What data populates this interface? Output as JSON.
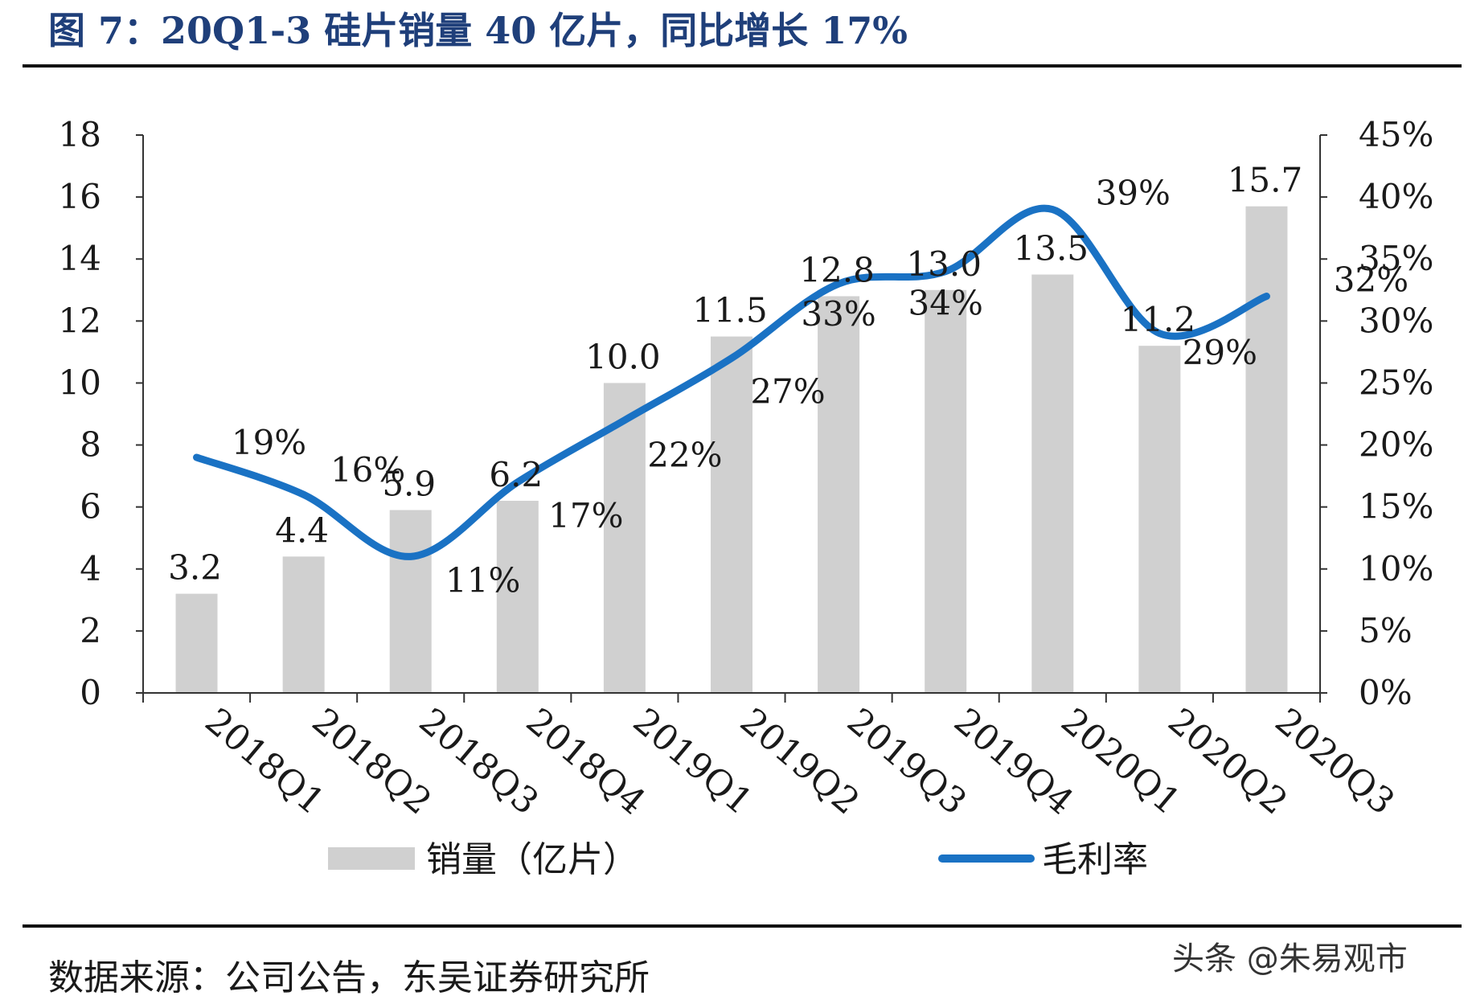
{
  "header": {
    "title": "图 7：20Q1-3 硅片销量 40 亿片，同比增长 17%"
  },
  "footer": {
    "source": "数据来源：公司公告，东吴证券研究所",
    "watermark": "头条 @朱易观市"
  },
  "chart_data": {
    "type": "bar",
    "title": "",
    "categories": [
      "2018Q1",
      "2018Q2",
      "2018Q3",
      "2018Q4",
      "2019Q1",
      "2019Q2",
      "2019Q3",
      "2019Q4",
      "2020Q1",
      "2020Q2",
      "2020Q3"
    ],
    "series": [
      {
        "name": "销量（亿片）",
        "type": "bar",
        "axis": "left",
        "values": [
          3.2,
          4.4,
          5.9,
          6.2,
          10.0,
          11.5,
          12.8,
          13.0,
          13.5,
          11.2,
          15.7
        ],
        "labels": [
          "3.2",
          "4.4",
          "5.9",
          "6.2",
          "10.0",
          "11.5",
          "12.8",
          "13.0",
          "13.5",
          "11.2",
          "15.7"
        ],
        "color": "#d0d0d0"
      },
      {
        "name": "毛利率",
        "type": "line",
        "axis": "right",
        "values": [
          19,
          16,
          11,
          17,
          22,
          27,
          33,
          34,
          39,
          29,
          32
        ],
        "labels": [
          "19%",
          "16%",
          "11%",
          "17%",
          "22%",
          "27%",
          "33%",
          "34%",
          "39%",
          "29%",
          "32%"
        ],
        "color": "#1a72c4"
      }
    ],
    "y_left": {
      "min": 0,
      "max": 18,
      "ticks": [
        "0",
        "2",
        "4",
        "6",
        "8",
        "10",
        "12",
        "14",
        "16",
        "18"
      ]
    },
    "y_right": {
      "min": 0,
      "max": 45,
      "ticks": [
        "0%",
        "5%",
        "10%",
        "15%",
        "20%",
        "25%",
        "30%",
        "35%",
        "40%",
        "45%"
      ]
    },
    "legend": {
      "placement": "bottom"
    },
    "grid": false
  }
}
